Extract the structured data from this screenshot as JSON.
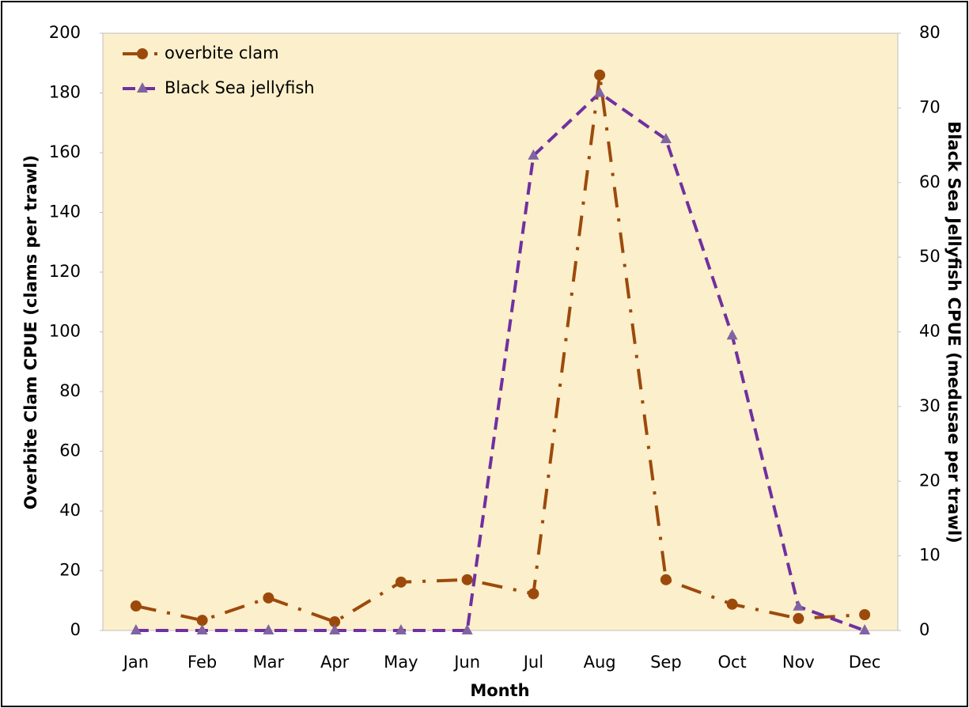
{
  "chart_data": {
    "type": "line",
    "x_label": "Month",
    "y_label": "Overbite Clam CPUE (clams per trawl)",
    "y2_label": "Black Sea Jellyfish CPUE (medusae per trawl)",
    "categories": [
      "Jan",
      "Feb",
      "Mar",
      "Apr",
      "May",
      "Jun",
      "Jul",
      "Aug",
      "Sep",
      "Oct",
      "Nov",
      "Dec"
    ],
    "series": [
      {
        "name": "overbite clam",
        "color": "#9c4a0c",
        "marker": "circle",
        "linestyle": "dash-dot",
        "values": [
          8.2,
          3.4,
          10.9,
          2.9,
          16.2,
          17,
          12.3,
          186,
          17,
          8.8,
          4,
          5.3
        ]
      },
      {
        "name": "Black Sea jellyfish",
        "color": "#7030a0",
        "marker_color": "#8064a2",
        "marker": "triangle",
        "linestyle": "dash",
        "axis": "y2",
        "values": [
          0,
          0,
          0,
          0,
          0,
          0,
          63.6,
          72,
          65.8,
          39.5,
          3.2,
          0
        ]
      }
    ],
    "ylim": [
      0,
      200
    ],
    "yticks": [
      0,
      20,
      40,
      60,
      80,
      100,
      120,
      140,
      160,
      180,
      200
    ],
    "y2lim": [
      0,
      80
    ],
    "y2ticks": [
      0,
      10,
      20,
      30,
      40,
      50,
      60,
      70,
      80
    ],
    "grid": false,
    "legend": "upper left",
    "background": "#fcefcb"
  }
}
